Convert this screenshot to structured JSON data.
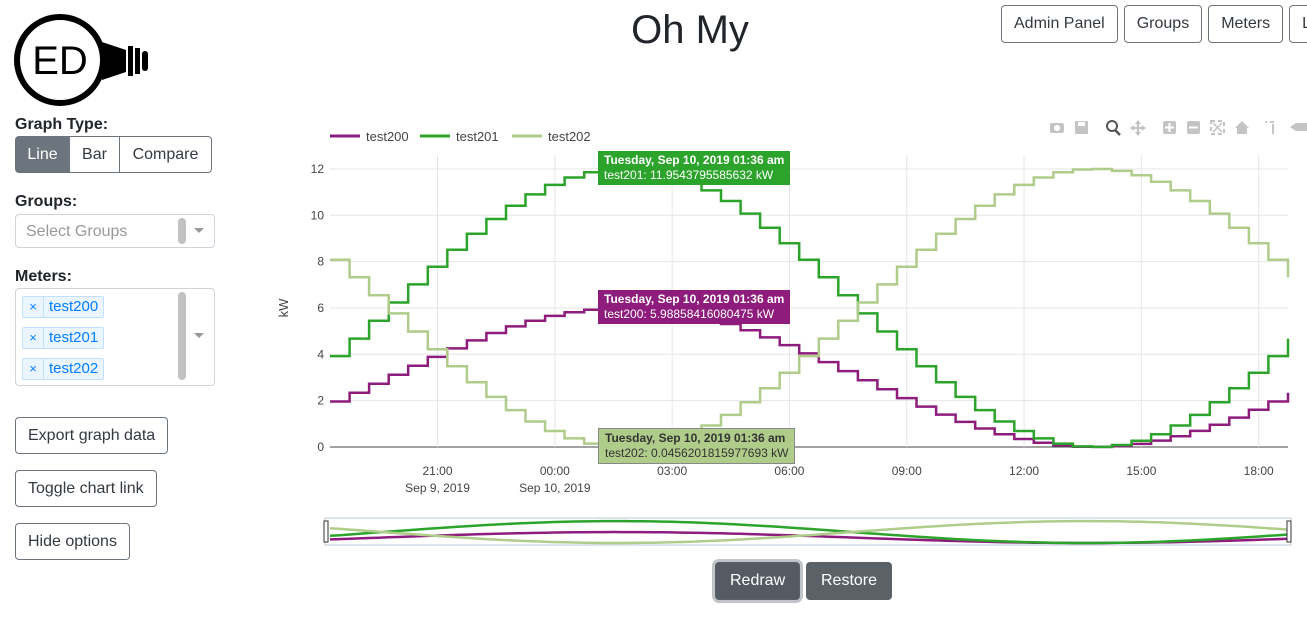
{
  "page": {
    "title": "Oh My"
  },
  "logo": {
    "text": "ED"
  },
  "nav": [
    "Admin Panel",
    "Groups",
    "Meters",
    "L"
  ],
  "graph_type": {
    "label": "Graph Type:",
    "options": [
      "Line",
      "Bar",
      "Compare"
    ],
    "selected": "Line"
  },
  "groups": {
    "label": "Groups:",
    "placeholder": "Select Groups"
  },
  "meters": {
    "label": "Meters:",
    "selected": [
      "test200",
      "test201",
      "test202"
    ],
    "remove_glyph": "×"
  },
  "side_buttons": {
    "export": "Export graph data",
    "toggle_link": "Toggle chart link",
    "hide": "Hide options"
  },
  "actions": {
    "redraw": "Redraw",
    "restore": "Restore"
  },
  "colors": {
    "test200": "#8d1c7c",
    "test201": "#2ca42c",
    "test202": "#b0cc8a"
  },
  "tooltips": [
    {
      "series": "test201",
      "date": "Tuesday, Sep 10, 2019 01:36 am",
      "value": "test201: 11.9543795585632 kW"
    },
    {
      "series": "test200",
      "date": "Tuesday, Sep 10, 2019 01:36 am",
      "value": "test200: 5.98858416080475 kW"
    },
    {
      "series": "test202",
      "date": "Tuesday, Sep 10, 2019 01:36 am",
      "value": "test202: 0.0456201815977693 kW"
    }
  ],
  "chart_data": {
    "type": "line",
    "line_shape": "step",
    "ylabel": "kW",
    "ylim": [
      0,
      12.6
    ],
    "yticks": [
      0,
      2,
      4,
      6,
      8,
      10,
      12
    ],
    "x_range_hours": [
      -5.75,
      18.75
    ],
    "x_ticks": [
      {
        "hour": -3,
        "label": "21:00",
        "sub": "Sep 9, 2019"
      },
      {
        "hour": 0,
        "label": "00:00",
        "sub": "Sep 10, 2019"
      },
      {
        "hour": 3,
        "label": "03:00",
        "sub": ""
      },
      {
        "hour": 6,
        "label": "06:00",
        "sub": ""
      },
      {
        "hour": 9,
        "label": "09:00",
        "sub": ""
      },
      {
        "hour": 12,
        "label": "12:00",
        "sub": ""
      },
      {
        "hour": 15,
        "label": "15:00",
        "sub": ""
      },
      {
        "hour": 18,
        "label": "18:00",
        "sub": ""
      }
    ],
    "legend": {
      "position": "top-left"
    },
    "grid": true,
    "series": [
      {
        "name": "test200",
        "amplitude": 6,
        "phase_hour": 1.6,
        "period_hours": 24,
        "offset": 0
      },
      {
        "name": "test201",
        "amplitude": 12,
        "phase_hour": 1.6,
        "period_hours": 24,
        "offset": 0
      },
      {
        "name": "test202",
        "amplitude": 12,
        "phase_hour": 13.6,
        "period_hours": 24,
        "offset": 0
      }
    ]
  }
}
